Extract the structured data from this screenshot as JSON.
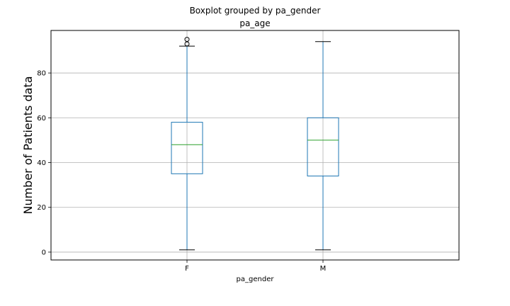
{
  "chart_data": {
    "type": "boxplot",
    "suptitle": "Boxplot grouped by pa_gender",
    "title": "pa_age",
    "xlabel": "pa_gender",
    "ylabel": "Number of Patients data",
    "categories": [
      "F",
      "M"
    ],
    "ylim": [
      -3.5,
      99
    ],
    "yticks": [
      0,
      20,
      40,
      60,
      80
    ],
    "grid": true,
    "boxes": [
      {
        "category": "F",
        "whisker_low": 1,
        "q1": 35,
        "median": 48,
        "q3": 58,
        "whisker_high": 92,
        "outliers": [
          93,
          95
        ]
      },
      {
        "category": "M",
        "whisker_low": 1,
        "q1": 34,
        "median": 50,
        "q3": 60,
        "whisker_high": 94,
        "outliers": []
      }
    ],
    "colors": {
      "box": "#1f77b4",
      "median": "#2ca02c",
      "whisker": "#1f77b4",
      "cap": "#000000",
      "outlier": "#000000",
      "grid": "#b0b0b0"
    }
  }
}
